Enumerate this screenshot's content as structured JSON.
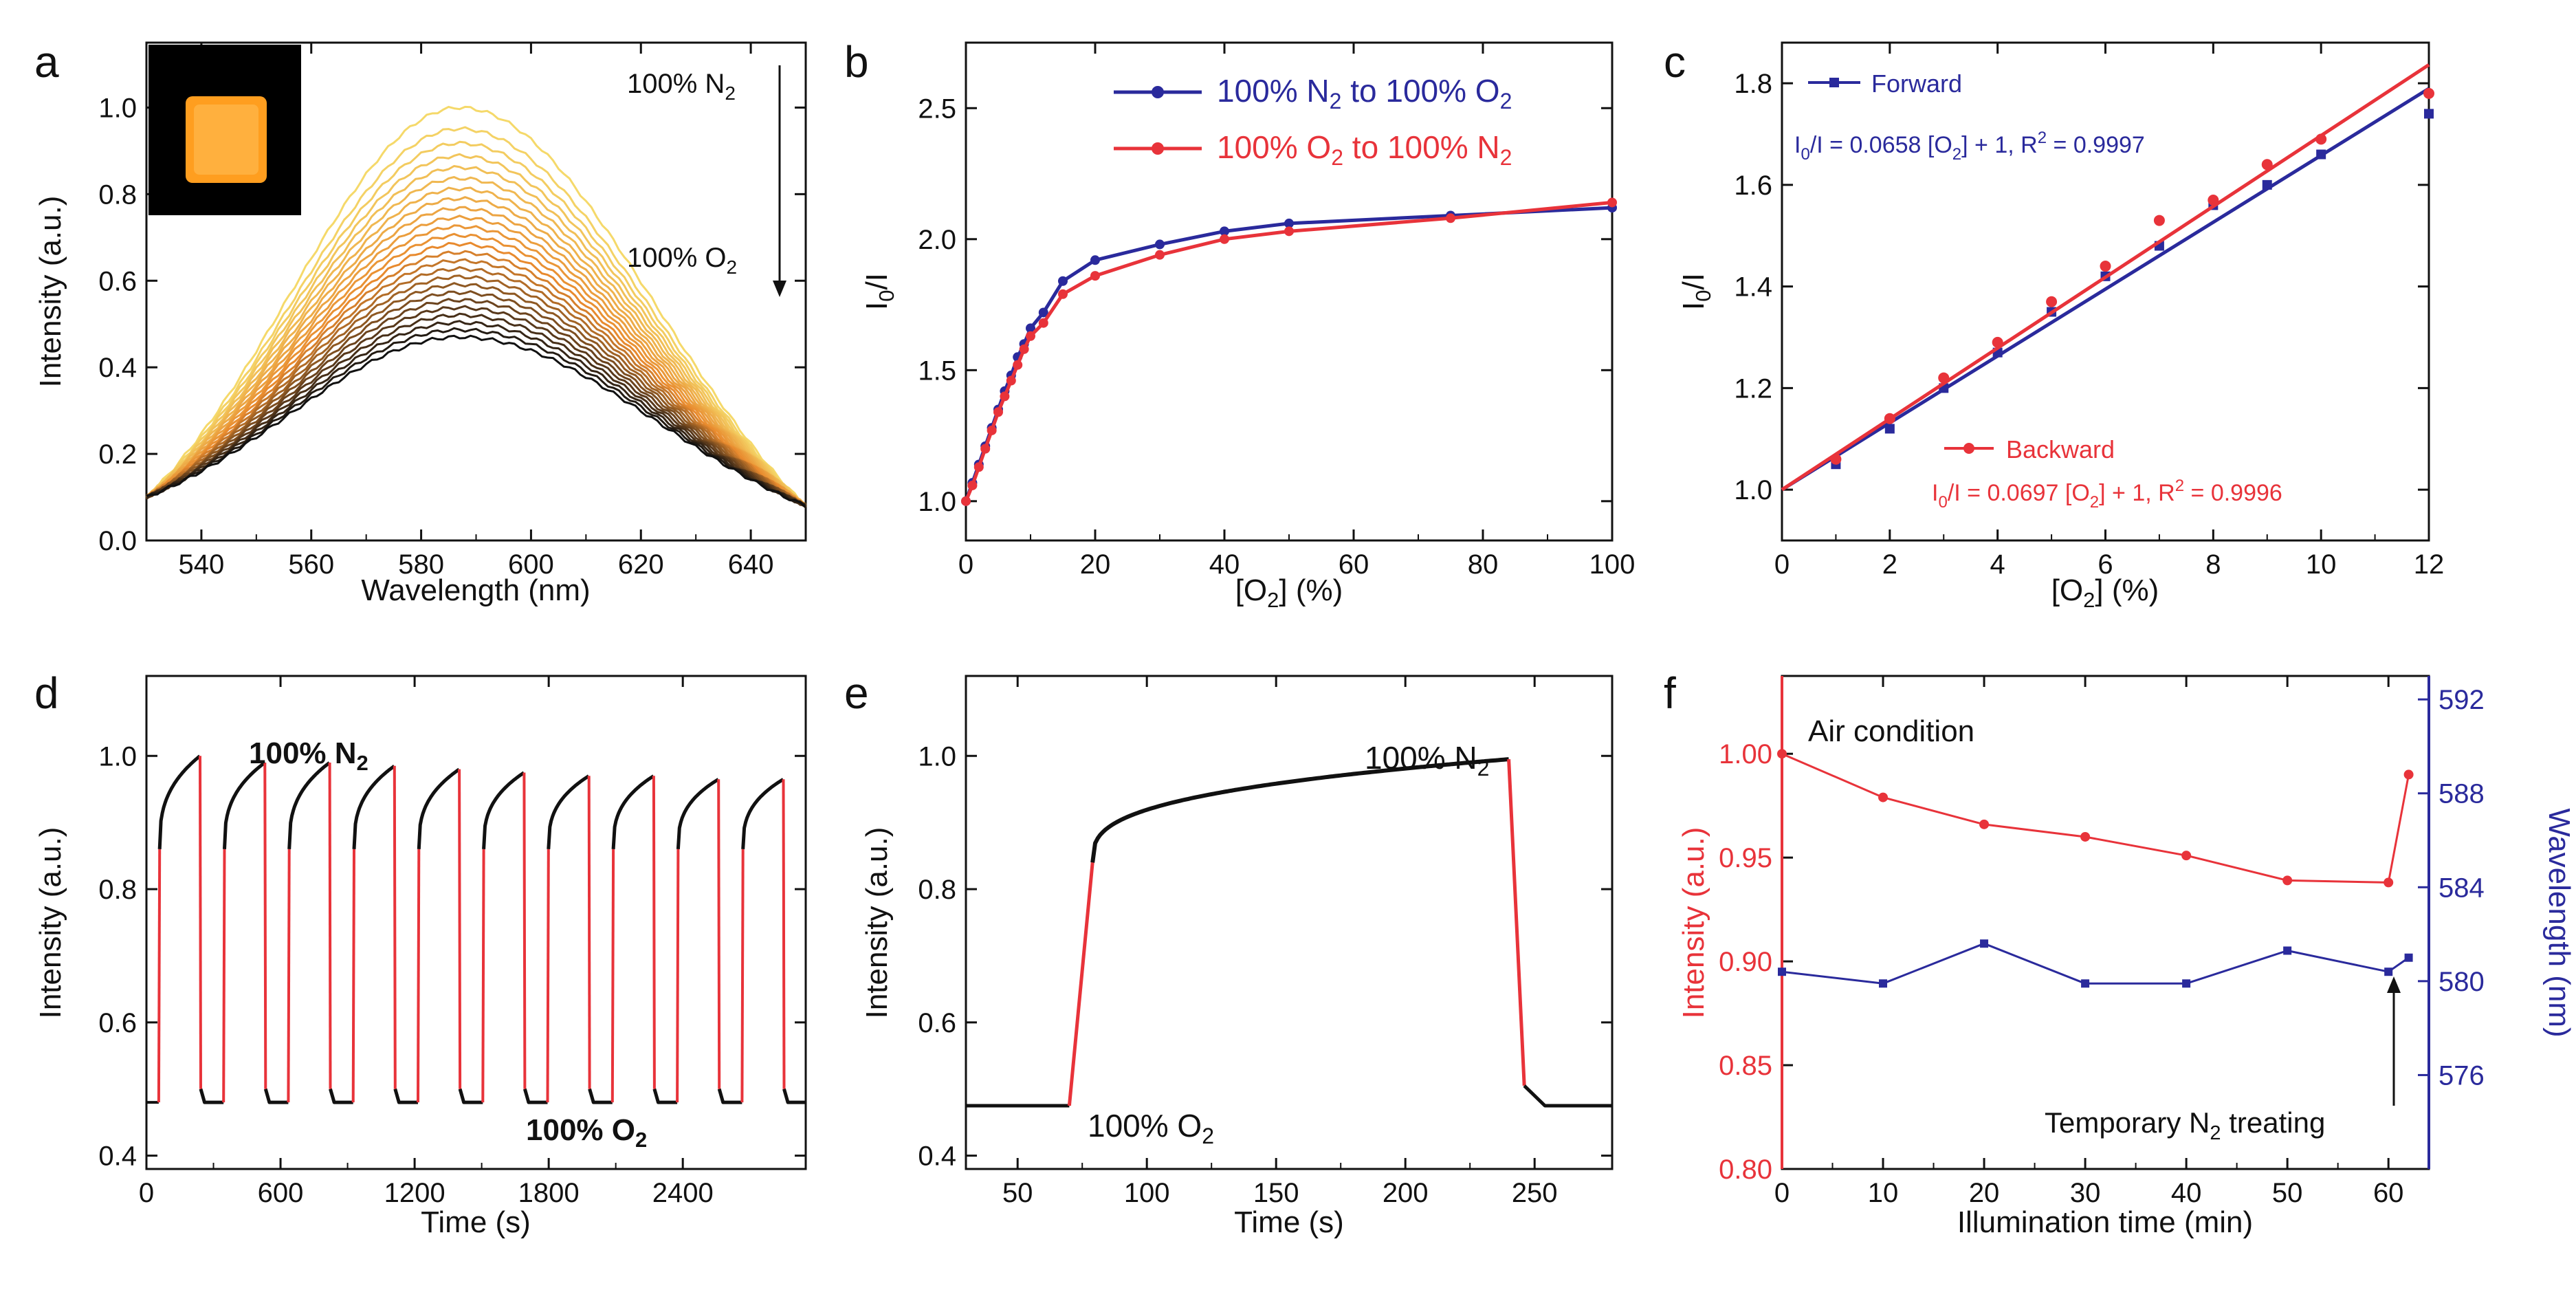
{
  "figure": {
    "panels": [
      {
        "id": "a",
        "type": "line",
        "letter": "a",
        "xlabel": "Wavelength (nm)",
        "ylabel": "Intensity (a.u.)",
        "xlim": [
          530,
          650
        ],
        "ylim": [
          0,
          1.15
        ],
        "xticks": [
          540,
          560,
          580,
          600,
          620,
          640
        ],
        "yticks": [
          0.0,
          0.2,
          0.4,
          0.6,
          0.8,
          1.0
        ],
        "ytick_labels": [
          "0.0",
          "0.2",
          "0.4",
          "0.6",
          "0.8",
          "1.0"
        ],
        "spectrum_family": {
          "curve_count": 25,
          "peak_wavelength_nm": 587,
          "peak_max": 1.0,
          "peak_min": 0.47,
          "value_at_530_nm": 0.1,
          "value_at_650_nm": 0.08,
          "color_top": "#f5d96a",
          "color_mid": "#e88a2e",
          "color_bottom": "#111111"
        },
        "annotations": [
          {
            "text": "100% N",
            "sub": "2",
            "role": "top"
          },
          {
            "text": "100% O",
            "sub": "2",
            "role": "bottom"
          }
        ],
        "inset": {
          "desc": "orange-glowing-film-photo",
          "bg": "#000000",
          "glow": "#ff9e1f"
        }
      },
      {
        "id": "b",
        "type": "line",
        "letter": "b",
        "xlabel_main": "[O",
        "xlabel_sub": "2",
        "xlabel_rest": "] (%)",
        "ylabel_main": "I",
        "ylabel_sub": "0",
        "ylabel_rest": "/I",
        "xlim": [
          0,
          100
        ],
        "ylim": [
          0.85,
          2.75
        ],
        "xticks": [
          0,
          20,
          40,
          60,
          80,
          100
        ],
        "yticks": [
          1.0,
          1.5,
          2.0,
          2.5
        ],
        "ytick_labels": [
          "1.0",
          "1.5",
          "2.0",
          "2.5"
        ],
        "series": [
          {
            "name_main": "100% N",
            "name_sub1": "2",
            "name_mid": " to 100% O",
            "name_sub2": "2",
            "color": "#2a2a9c",
            "x": [
              0,
              1,
              2,
              3,
              4,
              5,
              6,
              7,
              8,
              9,
              10,
              12,
              15,
              20,
              30,
              40,
              50,
              75,
              100
            ],
            "y": [
              1.0,
              1.07,
              1.14,
              1.21,
              1.28,
              1.35,
              1.42,
              1.48,
              1.55,
              1.6,
              1.66,
              1.72,
              1.84,
              1.92,
              1.98,
              2.03,
              2.06,
              2.09,
              2.12
            ]
          },
          {
            "name_main": "100% O",
            "name_sub1": "2",
            "name_mid": " to 100% N",
            "name_sub2": "2",
            "color": "#e8333a",
            "x": [
              0,
              1,
              2,
              3,
              4,
              5,
              6,
              7,
              8,
              9,
              10,
              12,
              15,
              20,
              30,
              40,
              50,
              75,
              100
            ],
            "y": [
              1.0,
              1.06,
              1.13,
              1.2,
              1.27,
              1.34,
              1.4,
              1.46,
              1.52,
              1.58,
              1.63,
              1.68,
              1.79,
              1.86,
              1.94,
              2.0,
              2.03,
              2.08,
              2.14
            ]
          }
        ]
      },
      {
        "id": "c",
        "type": "scatter",
        "letter": "c",
        "xlabel_main": "[O",
        "xlabel_sub": "2",
        "xlabel_rest": "] (%)",
        "ylabel_main": "I",
        "ylabel_sub": "0",
        "ylabel_rest": "/I",
        "xlim": [
          0,
          12
        ],
        "ylim": [
          0.9,
          1.88
        ],
        "xticks": [
          0,
          2,
          4,
          6,
          8,
          10,
          12
        ],
        "yticks": [
          1.0,
          1.2,
          1.4,
          1.6,
          1.8
        ],
        "ytick_labels": [
          "1.0",
          "1.2",
          "1.4",
          "1.6",
          "1.8"
        ],
        "series": [
          {
            "name": "Forward",
            "color": "#2a2a9c",
            "marker": "square",
            "x": [
              1,
              2,
              3,
              4,
              5,
              6,
              7,
              8,
              9,
              10,
              12
            ],
            "y": [
              1.05,
              1.12,
              1.2,
              1.27,
              1.35,
              1.42,
              1.48,
              1.56,
              1.6,
              1.66,
              1.74
            ],
            "fit": {
              "slope": 0.0658,
              "intercept": 1
            },
            "eq_a": "I",
            "eq_a_sub": "0",
            "eq_b": "/I = 0.0658 [O",
            "eq_b_sub": "2",
            "eq_c": "] + 1, R",
            "eq_c_sup": "2",
            "eq_d": " = 0.9997"
          },
          {
            "name": "Backward",
            "color": "#e8333a",
            "marker": "circle",
            "x": [
              1,
              2,
              3,
              4,
              5,
              6,
              7,
              8,
              9,
              10,
              12
            ],
            "y": [
              1.06,
              1.14,
              1.22,
              1.29,
              1.37,
              1.44,
              1.53,
              1.57,
              1.64,
              1.69,
              1.78
            ],
            "fit": {
              "slope": 0.0697,
              "intercept": 1
            },
            "eq_a": "I",
            "eq_a_sub": "0",
            "eq_b": "/I = 0.0697 [O",
            "eq_b_sub": "2",
            "eq_c": "] + 1, R",
            "eq_c_sup": "2",
            "eq_d": " = 0.9996"
          }
        ]
      },
      {
        "id": "d",
        "type": "line",
        "letter": "d",
        "xlabel": "Time (s)",
        "ylabel": "Intensity (a.u.)",
        "xlim": [
          0,
          2950
        ],
        "ylim": [
          0.38,
          1.12
        ],
        "xticks": [
          0,
          600,
          1200,
          1800,
          2400
        ],
        "yticks": [
          0.4,
          0.6,
          0.8,
          1.0
        ],
        "ytick_labels": [
          "0.4",
          "0.6",
          "0.8",
          "1.0"
        ],
        "cycles": {
          "count": 10,
          "period_s": 290,
          "first_rise_s": 55,
          "on_duration_s": 185,
          "low": 0.48,
          "peaks": [
            1.0,
            0.99,
            0.99,
            0.985,
            0.98,
            0.975,
            0.97,
            0.97,
            0.965,
            0.965
          ],
          "trace_color": "#111111",
          "switch_color": "#e8333a"
        },
        "annotations": [
          {
            "text": "100% N",
            "sub": "2",
            "role": "high"
          },
          {
            "text": "100% O",
            "sub": "2",
            "role": "low"
          }
        ]
      },
      {
        "id": "e",
        "type": "line",
        "letter": "e",
        "xlabel": "Time (s)",
        "ylabel": "Intensity (a.u.)",
        "xlim": [
          30,
          280
        ],
        "ylim": [
          0.38,
          1.12
        ],
        "xticks": [
          50,
          100,
          150,
          200,
          250
        ],
        "yticks": [
          0.4,
          0.6,
          0.8,
          1.0
        ],
        "ytick_labels": [
          "0.4",
          "0.6",
          "0.8",
          "1.0"
        ],
        "response": {
          "rise_start_s": 70,
          "rise_end_s": 79,
          "fall_start_s": 240,
          "fall_end_s": 246,
          "low": 0.475,
          "high": 0.995,
          "trace_color": "#111111",
          "switch_color": "#e8333a"
        },
        "annotations": [
          {
            "text": "100% N",
            "sub": "2",
            "role": "high"
          },
          {
            "text": "100% O",
            "sub": "2",
            "role": "low"
          }
        ]
      },
      {
        "id": "f",
        "type": "line",
        "letter": "f",
        "xlabel": "Illumination time (min)",
        "ylabel_left": "Intensity (a.u.)",
        "ylabel_right": "Wavelength (nm)",
        "xlim": [
          0,
          64
        ],
        "ylim_left": [
          0.8,
          1.0375
        ],
        "ylim_right": [
          572,
          593
        ],
        "xticks": [
          0,
          10,
          20,
          30,
          40,
          50,
          60
        ],
        "yticks_left": [
          0.8,
          0.85,
          0.9,
          0.95,
          1.0
        ],
        "ytick_labels_left": [
          "0.80",
          "0.85",
          "0.90",
          "0.95",
          "1.00"
        ],
        "yticks_right": [
          576,
          580,
          584,
          588,
          592
        ],
        "ytick_labels_right": [
          "576",
          "580",
          "584",
          "588",
          "592"
        ],
        "series": [
          {
            "name": "Intensity",
            "color": "#e8333a",
            "axis": "left",
            "x": [
              0,
              10,
              20,
              30,
              40,
              50,
              60,
              62
            ],
            "y": [
              1.0,
              0.979,
              0.966,
              0.96,
              0.951,
              0.939,
              0.938,
              0.99
            ]
          },
          {
            "name": "Wavelength",
            "color": "#2a2a9c",
            "axis": "right",
            "x": [
              0,
              10,
              20,
              30,
              40,
              50,
              60,
              62
            ],
            "y": [
              580.4,
              579.9,
              581.6,
              579.9,
              579.9,
              581.3,
              580.4,
              581.0
            ]
          }
        ],
        "annotations": [
          {
            "text": "Air condition",
            "role": "title"
          },
          {
            "text_a": "Temporary N",
            "sub": "2",
            "text_b": " treating",
            "role": "arrow-note"
          }
        ],
        "left_color": "#e8333a",
        "right_color": "#2a2a9c"
      }
    ]
  }
}
